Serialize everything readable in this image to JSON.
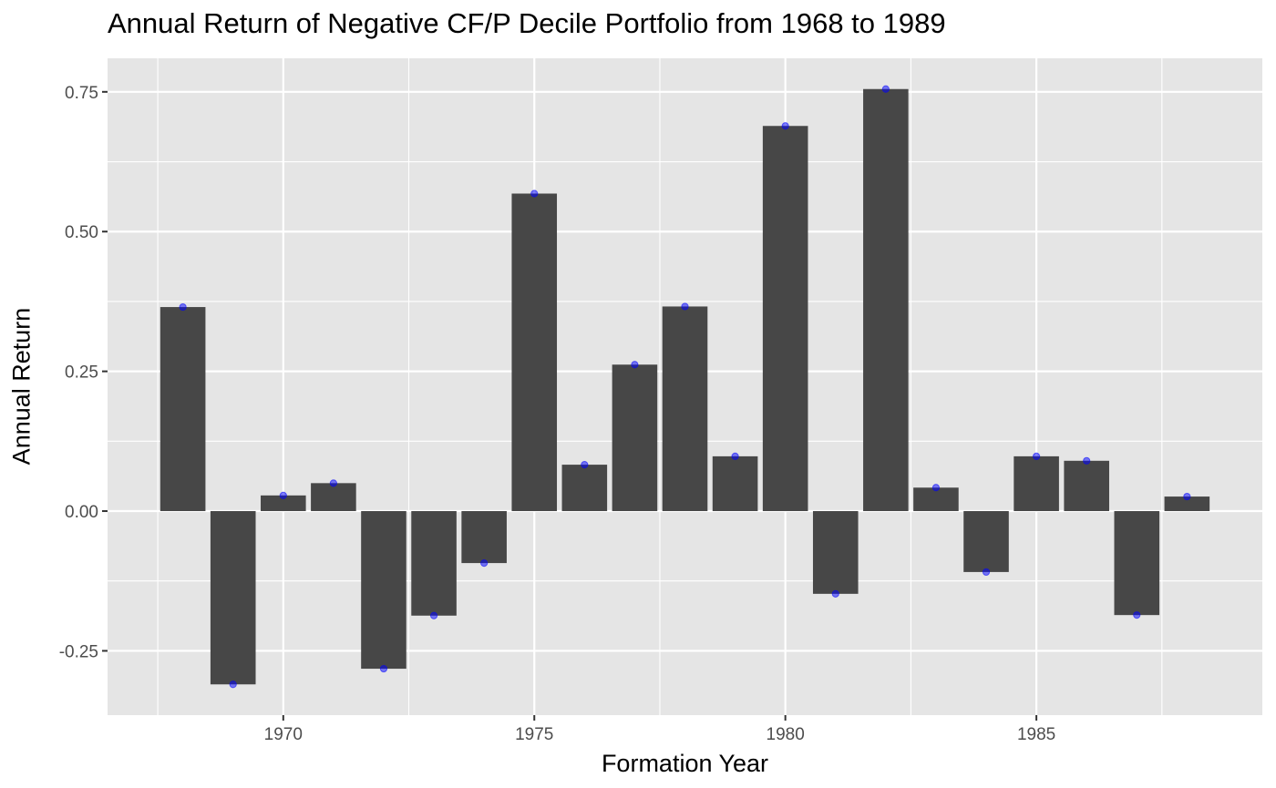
{
  "chart_data": {
    "type": "bar",
    "title": "Annual Return of Negative CF/P Decile Portfolio from 1968 to 1989",
    "xlabel": "Formation Year",
    "ylabel": "Annual Return",
    "x": [
      1968,
      1969,
      1970,
      1971,
      1972,
      1973,
      1974,
      1975,
      1976,
      1977,
      1978,
      1979,
      1980,
      1981,
      1982,
      1983,
      1984,
      1985,
      1986,
      1987,
      1988
    ],
    "values": [
      0.365,
      -0.31,
      0.028,
      0.05,
      -0.282,
      -0.187,
      -0.093,
      0.568,
      0.083,
      0.262,
      0.366,
      0.098,
      0.689,
      -0.148,
      0.755,
      0.042,
      -0.109,
      0.098,
      0.09,
      -0.186,
      0.026
    ],
    "xlim": [
      1966.5,
      1989.5
    ],
    "ylim": [
      -0.365,
      0.81
    ],
    "x_ticks": [
      1970,
      1975,
      1980,
      1985
    ],
    "x_tick_labels": [
      "1970",
      "1975",
      "1980",
      "1985"
    ],
    "y_ticks": [
      -0.25,
      0,
      0.25,
      0.5,
      0.75
    ],
    "y_tick_labels": [
      "-0.25",
      "0.00",
      "0.25",
      "0.50",
      "0.75"
    ],
    "grid": true,
    "colors": {
      "panel_bg": "#e5e5e5",
      "grid": "#ffffff",
      "bar": "#474747",
      "point": "#0000ff"
    }
  }
}
